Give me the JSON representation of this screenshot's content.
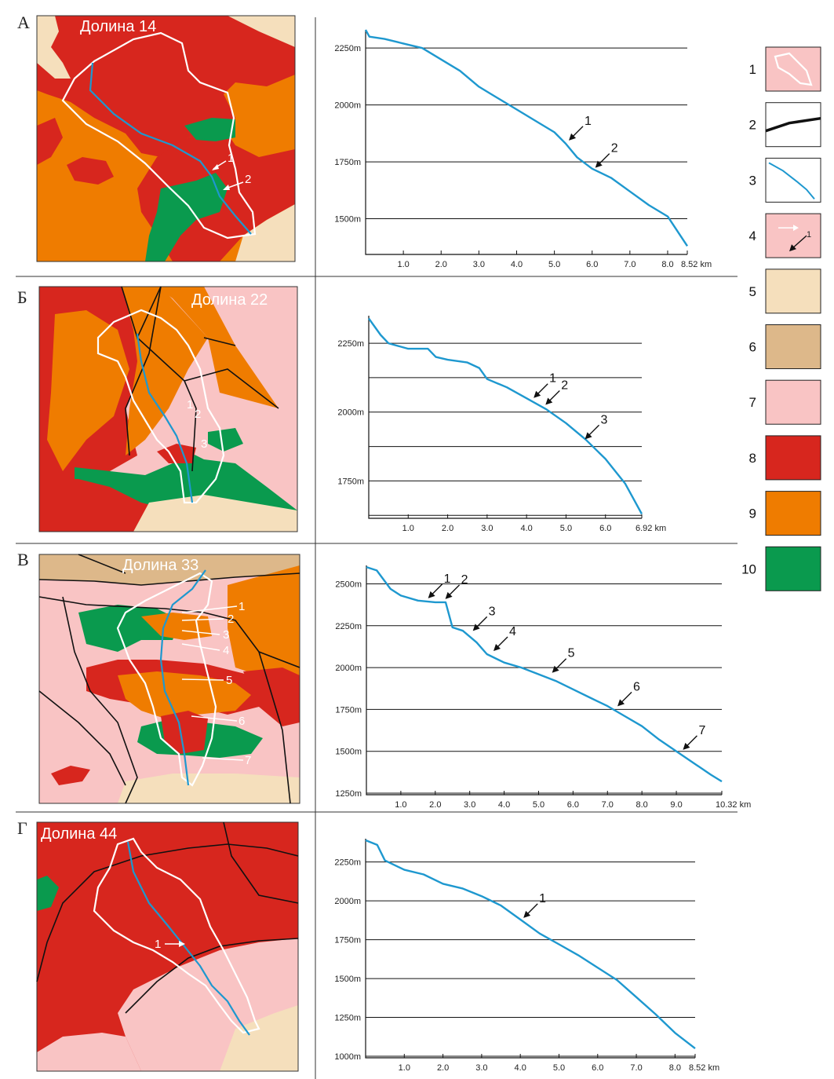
{
  "colors": {
    "pale_pink": "#f9c4c4",
    "red": "#d7261e",
    "orange": "#ef7c00",
    "green": "#0a9a4e",
    "beige": "#f5dfbc",
    "tan": "#ddb88a",
    "river": "#1e98cf",
    "fault": "#111111",
    "outline": "#ffffff"
  },
  "legend": [
    {
      "num": "1",
      "icon": "watershed-outline-icon"
    },
    {
      "num": "2",
      "icon": "fault-line-icon"
    },
    {
      "num": "3",
      "icon": "river-profile-icon"
    },
    {
      "num": "4",
      "icon": "marker-arrow-icon",
      "sample": "1"
    },
    {
      "num": "5",
      "color": "#f5dfbc"
    },
    {
      "num": "6",
      "color": "#ddb88a"
    },
    {
      "num": "7",
      "color": "#f9c4c4"
    },
    {
      "num": "8",
      "color": "#d7261e"
    },
    {
      "num": "9",
      "color": "#ef7c00"
    },
    {
      "num": "10",
      "color": "#0a9a4e"
    }
  ],
  "panels": [
    {
      "letter": "А",
      "valley": "Долина 14",
      "map_markers": [
        "1",
        "2"
      ],
      "chart_data": {
        "type": "line",
        "x_ticks": [
          "1.0",
          "2.0",
          "3.0",
          "4.0",
          "5.0",
          "6.0",
          "7.0",
          "8.0",
          "8.52 km"
        ],
        "x_max": 8.52,
        "y_labels": [
          "2250m",
          "2000m",
          "1750m",
          "1500m"
        ],
        "y_range": [
          1350,
          2330
        ],
        "gridlines": [
          2250,
          2000,
          1750,
          1500
        ],
        "profile": [
          [
            0,
            2330
          ],
          [
            0.1,
            2300
          ],
          [
            0.5,
            2290
          ],
          [
            1.0,
            2270
          ],
          [
            1.5,
            2250
          ],
          [
            2.0,
            2200
          ],
          [
            2.5,
            2150
          ],
          [
            3.0,
            2080
          ],
          [
            3.3,
            2050
          ],
          [
            4.0,
            1980
          ],
          [
            4.5,
            1930
          ],
          [
            5.0,
            1880
          ],
          [
            5.3,
            1830
          ],
          [
            5.6,
            1770
          ],
          [
            6.0,
            1720
          ],
          [
            6.5,
            1680
          ],
          [
            7.0,
            1620
          ],
          [
            7.5,
            1560
          ],
          [
            8.0,
            1510
          ],
          [
            8.52,
            1380
          ]
        ],
        "markers": [
          {
            "num": "1",
            "x": 5.3,
            "y": 1830
          },
          {
            "num": "2",
            "x": 6.0,
            "y": 1710
          }
        ]
      }
    },
    {
      "letter": "Б",
      "valley": "Долина 22",
      "map_markers": [
        "1",
        "2",
        "3"
      ],
      "chart_data": {
        "type": "line",
        "x_ticks": [
          "1.0",
          "2.0",
          "3.0",
          "4.0",
          "5.0",
          "6.0",
          "6.92 km"
        ],
        "x_max": 6.92,
        "y_labels": [
          "2250m",
          "2000m",
          "1750m"
        ],
        "y_range": [
          1620,
          2350
        ],
        "gridlines": [
          2250,
          2125,
          2000,
          1875,
          1750,
          1625
        ],
        "profile": [
          [
            0,
            2340
          ],
          [
            0.3,
            2280
          ],
          [
            0.5,
            2250
          ],
          [
            1.0,
            2230
          ],
          [
            1.5,
            2230
          ],
          [
            1.7,
            2200
          ],
          [
            2.0,
            2190
          ],
          [
            2.5,
            2180
          ],
          [
            2.8,
            2160
          ],
          [
            3.0,
            2120
          ],
          [
            3.5,
            2090
          ],
          [
            4.0,
            2050
          ],
          [
            4.5,
            2010
          ],
          [
            5.0,
            1960
          ],
          [
            5.5,
            1900
          ],
          [
            6.0,
            1830
          ],
          [
            6.5,
            1740
          ],
          [
            6.92,
            1630
          ]
        ],
        "markers": [
          {
            "num": "1",
            "x": 4.1,
            "y": 2040
          },
          {
            "num": "2",
            "x": 4.4,
            "y": 2015
          },
          {
            "num": "3",
            "x": 5.4,
            "y": 1890
          }
        ]
      }
    },
    {
      "letter": "В",
      "valley": "Долина 33",
      "map_markers": [
        "1",
        "2",
        "3",
        "4",
        "5",
        "6",
        "7"
      ],
      "chart_data": {
        "type": "line",
        "x_ticks": [
          "1.0",
          "2.0",
          "3.0",
          "4.0",
          "5.0",
          "6.0",
          "7.0",
          "8.0",
          "9.0",
          "10.32 km"
        ],
        "x_max": 10.32,
        "y_labels": [
          "2500m",
          "2250m",
          "2000m",
          "1750m",
          "1500m",
          "1250m"
        ],
        "y_range": [
          1250,
          2610
        ],
        "gridlines": [
          2500,
          2250,
          2000,
          1750,
          1500,
          1250
        ],
        "profile": [
          [
            0,
            2600
          ],
          [
            0.3,
            2580
          ],
          [
            0.7,
            2470
          ],
          [
            1.0,
            2430
          ],
          [
            1.5,
            2400
          ],
          [
            2.0,
            2390
          ],
          [
            2.3,
            2390
          ],
          [
            2.5,
            2240
          ],
          [
            2.8,
            2220
          ],
          [
            3.2,
            2150
          ],
          [
            3.5,
            2080
          ],
          [
            4.0,
            2030
          ],
          [
            4.5,
            2000
          ],
          [
            5.0,
            1960
          ],
          [
            5.5,
            1920
          ],
          [
            6.0,
            1870
          ],
          [
            6.5,
            1820
          ],
          [
            7.0,
            1770
          ],
          [
            7.5,
            1710
          ],
          [
            8.0,
            1650
          ],
          [
            8.5,
            1570
          ],
          [
            9.0,
            1500
          ],
          [
            9.5,
            1430
          ],
          [
            10.0,
            1360
          ],
          [
            10.32,
            1320
          ]
        ],
        "markers": [
          {
            "num": "1",
            "x": 1.7,
            "y": 2395
          },
          {
            "num": "2",
            "x": 2.2,
            "y": 2390
          },
          {
            "num": "3",
            "x": 3.0,
            "y": 2200
          },
          {
            "num": "4",
            "x": 3.6,
            "y": 2080
          },
          {
            "num": "5",
            "x": 5.3,
            "y": 1950
          },
          {
            "num": "6",
            "x": 7.2,
            "y": 1750
          },
          {
            "num": "7",
            "x": 9.1,
            "y": 1490
          }
        ]
      }
    },
    {
      "letter": "Г",
      "valley": "Долина 44",
      "map_markers": [
        "1"
      ],
      "chart_data": {
        "type": "line",
        "x_ticks": [
          "1.0",
          "2.0",
          "3.0",
          "4.0",
          "5.0",
          "6.0",
          "7.0",
          "8.0",
          "8.52 km"
        ],
        "x_max": 8.52,
        "y_labels": [
          "2250m",
          "2000m",
          "1750m",
          "1500m",
          "1250m",
          "1000m"
        ],
        "y_range": [
          1000,
          2400
        ],
        "gridlines": [
          2250,
          2000,
          1750,
          1500,
          1250,
          1000
        ],
        "profile": [
          [
            0,
            2390
          ],
          [
            0.3,
            2360
          ],
          [
            0.5,
            2260
          ],
          [
            1.0,
            2200
          ],
          [
            1.5,
            2170
          ],
          [
            2.0,
            2110
          ],
          [
            2.5,
            2080
          ],
          [
            3.0,
            2030
          ],
          [
            3.5,
            1970
          ],
          [
            4.0,
            1880
          ],
          [
            4.5,
            1790
          ],
          [
            5.0,
            1720
          ],
          [
            5.5,
            1650
          ],
          [
            6.0,
            1570
          ],
          [
            6.5,
            1490
          ],
          [
            7.0,
            1380
          ],
          [
            7.5,
            1270
          ],
          [
            8.0,
            1150
          ],
          [
            8.52,
            1050
          ]
        ],
        "markers": [
          {
            "num": "1",
            "x": 4.0,
            "y": 1870
          }
        ]
      }
    }
  ]
}
